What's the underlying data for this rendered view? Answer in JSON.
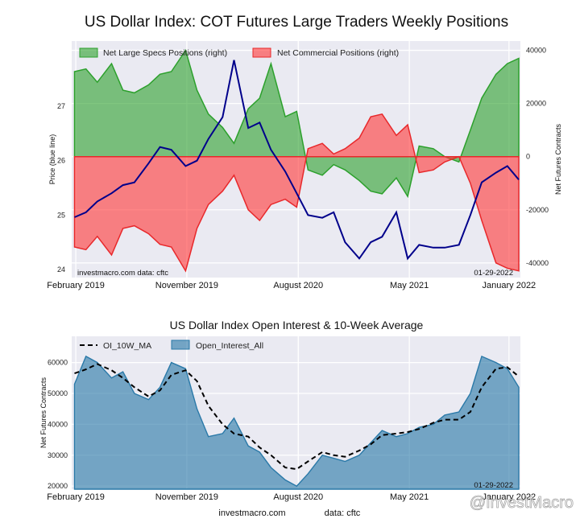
{
  "figure": {
    "title": "US Dollar Index: COT Futures Large Traders Weekly Positions",
    "watermark": "@InvestMacro",
    "footer_source": "investmacro.com",
    "footer_data": "data: cftc"
  },
  "chart_data": [
    {
      "type": "area",
      "title": "US Dollar Index: COT Futures Large Traders Weekly Positions",
      "ylabel_left": "Price (blue line)",
      "ylabel_right": "Net Futures Contracts",
      "xlim": [
        "2019-01-22",
        "2022-01-29"
      ],
      "ylim_left": [
        23.85,
        28.2
      ],
      "ylim_right": [
        -45500,
        43500
      ],
      "x_ticks": [
        "February 2019",
        "November 2019",
        "August 2020",
        "May 2021",
        "January 2022"
      ],
      "y_ticks_left": [
        "24",
        "25",
        "26",
        "27"
      ],
      "y_ticks_right": [
        "-40000",
        "-20000",
        "0",
        "20000",
        "40000"
      ],
      "legend": [
        "Net Large Specs Positions (right)",
        "Net Commercial Positions (right)"
      ],
      "legend_position": "top-left",
      "grid": true,
      "annotations": {
        "source": "investmacro.com    data: cftc",
        "date": "01-29-2022"
      },
      "x": [
        "2019-01-29",
        "2019-02-26",
        "2019-03-26",
        "2019-04-30",
        "2019-05-28",
        "2019-06-25",
        "2019-07-30",
        "2019-08-27",
        "2019-09-24",
        "2019-10-29",
        "2019-11-26",
        "2019-12-24",
        "2020-01-28",
        "2020-02-25",
        "2020-03-31",
        "2020-04-28",
        "2020-05-26",
        "2020-06-30",
        "2020-07-28",
        "2020-08-25",
        "2020-09-29",
        "2020-10-27",
        "2020-11-24",
        "2020-12-29",
        "2021-01-26",
        "2021-02-23",
        "2021-03-30",
        "2021-04-27",
        "2021-05-25",
        "2021-06-29",
        "2021-07-27",
        "2021-08-31",
        "2021-09-28",
        "2021-10-26",
        "2021-11-30",
        "2021-12-28",
        "2022-01-25"
      ],
      "series": [
        {
          "name": "Net Large Specs Positions (right)",
          "color": "#2ca02c",
          "values": [
            32000,
            33000,
            28000,
            35000,
            25000,
            24000,
            27000,
            31000,
            32000,
            40000,
            25000,
            16000,
            11000,
            5000,
            18000,
            22000,
            35000,
            15000,
            17000,
            -5000,
            -7000,
            -3000,
            -5000,
            -9000,
            -13000,
            -14000,
            -8000,
            -15000,
            4000,
            3000,
            0,
            -2000,
            10000,
            22000,
            31000,
            35000,
            37000
          ]
        },
        {
          "name": "Net Commercial Positions (right)",
          "color": "#e8282b",
          "values": [
            -34000,
            -35000,
            -30000,
            -37000,
            -27000,
            -26000,
            -29000,
            -33000,
            -34000,
            -43000,
            -27000,
            -18000,
            -13000,
            -7000,
            -20000,
            -24000,
            -18000,
            -16000,
            -19000,
            3000,
            5000,
            1000,
            3000,
            7000,
            15000,
            16000,
            8000,
            12000,
            -6000,
            -5000,
            -2000,
            0,
            -10000,
            -24000,
            -40000,
            -42000,
            -43000
          ]
        },
        {
          "name": "US Dollar Index price",
          "color": "#00008b",
          "values": [
            24.96,
            25.05,
            25.25,
            25.4,
            25.55,
            25.6,
            25.95,
            26.25,
            26.2,
            25.9,
            26.0,
            26.4,
            26.8,
            27.85,
            26.6,
            26.7,
            26.2,
            25.8,
            25.4,
            25.0,
            24.95,
            25.05,
            24.5,
            24.2,
            24.5,
            24.6,
            25.05,
            24.2,
            24.45,
            24.4,
            24.4,
            24.45,
            25.0,
            25.6,
            25.78,
            25.9,
            25.65
          ]
        }
      ]
    },
    {
      "type": "area",
      "title": "US Dollar Index Open Interest & 10-Week Average",
      "ylabel": "Net Futures Contracts",
      "xlim": [
        "2019-01-22",
        "2022-01-29"
      ],
      "ylim": [
        19000,
        68500
      ],
      "x_ticks": [
        "February 2019",
        "November 2019",
        "August 2020",
        "May 2021",
        "January 2022"
      ],
      "y_ticks": [
        "20000",
        "30000",
        "40000",
        "50000",
        "60000"
      ],
      "legend": [
        "OI_10W_MA",
        "Open_Interest_All"
      ],
      "legend_position": "top-left",
      "grid": true,
      "annotations": {
        "date": "01-29-2022"
      },
      "x": [
        "2019-01-29",
        "2019-02-26",
        "2019-03-26",
        "2019-04-30",
        "2019-05-28",
        "2019-06-25",
        "2019-07-30",
        "2019-08-27",
        "2019-09-24",
        "2019-10-29",
        "2019-11-26",
        "2019-12-24",
        "2020-01-28",
        "2020-02-25",
        "2020-03-31",
        "2020-04-28",
        "2020-05-26",
        "2020-06-30",
        "2020-07-28",
        "2020-08-25",
        "2020-09-29",
        "2020-10-27",
        "2020-11-24",
        "2020-12-29",
        "2021-01-26",
        "2021-02-23",
        "2021-03-30",
        "2021-04-27",
        "2021-05-25",
        "2021-06-29",
        "2021-07-27",
        "2021-08-31",
        "2021-09-28",
        "2021-10-26",
        "2021-11-30",
        "2021-12-28",
        "2022-01-25"
      ],
      "series": [
        {
          "name": "Open_Interest_All",
          "color": "#2a79a8",
          "values": [
            53000,
            62000,
            60000,
            55000,
            57000,
            50000,
            48000,
            52000,
            60000,
            58000,
            45000,
            36000,
            37000,
            42000,
            33000,
            31000,
            26000,
            22000,
            20000,
            24000,
            30000,
            29000,
            28000,
            30000,
            34000,
            38000,
            36000,
            37000,
            39000,
            40000,
            43000,
            44000,
            50000,
            62000,
            60000,
            58000,
            52000
          ]
        },
        {
          "name": "OI_10W_MA",
          "color": "#000000",
          "values": [
            56500,
            57800,
            59500,
            57500,
            55000,
            52000,
            49000,
            51000,
            56000,
            57500,
            54000,
            46000,
            40000,
            37000,
            36000,
            32500,
            30000,
            26000,
            25500,
            28000,
            31000,
            30000,
            29500,
            31500,
            33500,
            36500,
            37000,
            37500,
            38500,
            40500,
            41500,
            41500,
            44000,
            52000,
            58000,
            58500,
            55500
          ]
        }
      ]
    }
  ]
}
